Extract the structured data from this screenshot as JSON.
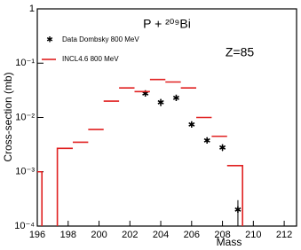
{
  "chart_data": {
    "type": "histogram",
    "title": "P + ²⁰⁹Bi",
    "annotation": "Z=85",
    "x_label": "Mass",
    "y_label": "Cross-section (mb)",
    "xlim": [
      196,
      212.8
    ],
    "xticks": [
      196,
      198,
      200,
      202,
      204,
      206,
      208,
      210,
      212
    ],
    "ylim": [
      0.0001,
      1
    ],
    "yticks": [
      {
        "value": 0.0001,
        "label": "10⁻⁴"
      },
      {
        "value": 0.001,
        "label": "10⁻³"
      },
      {
        "value": 0.01,
        "label": "10⁻²"
      },
      {
        "value": 0.1,
        "label": "10⁻¹"
      },
      1
    ],
    "log_y": true,
    "legend": "upper left",
    "series": [
      {
        "name": "Data Dombsky 800 MeV",
        "type": "scatter",
        "color": "#000000",
        "x": [
          203,
          204,
          205,
          206,
          207,
          208,
          209
        ],
        "values": [
          0.028,
          0.019,
          0.023,
          0.0075,
          0.0038,
          0.0028,
          0.0002
        ],
        "errors": [
          0.003,
          0.003,
          0,
          0,
          0,
          0.0004,
          0.0001
        ]
      },
      {
        "name": "INCL4.6  800 MeV",
        "type": "histogram",
        "color": "#e02020",
        "bins": [
          196,
          196.3,
          197.3,
          198.3,
          199.3,
          200.3,
          201.3,
          202.3,
          203.3,
          204.3,
          205.3,
          206.3,
          207.3,
          208.3,
          209.3
        ],
        "values": [
          0.001,
          null,
          0.0027,
          0.0035,
          0.006,
          0.02,
          0.035,
          0.03,
          0.05,
          0.045,
          0.035,
          0.01,
          0.0045,
          0.0013
        ]
      }
    ]
  }
}
